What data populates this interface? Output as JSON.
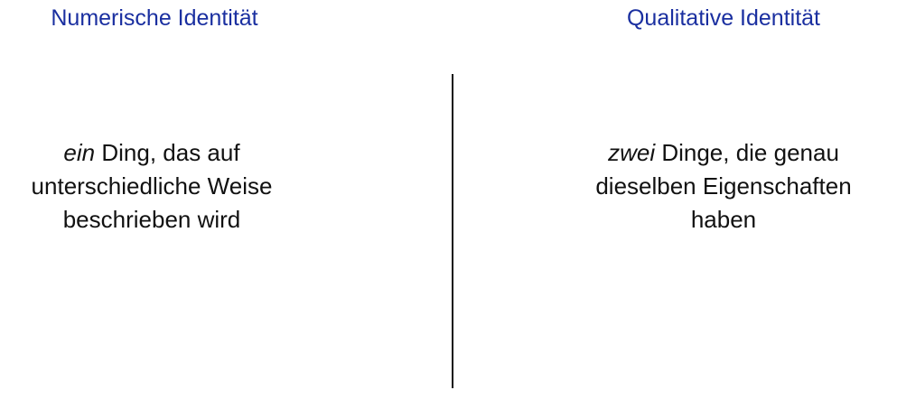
{
  "left": {
    "title": "Numerische Identität",
    "emphasis": "ein",
    "line1_rest": " Ding, das auf",
    "line2": "unterschiedliche Weise",
    "line3": "beschrieben wird"
  },
  "right": {
    "title": "Qualitative Identität",
    "emphasis": "zwei",
    "line1_rest": " Dinge, die genau",
    "line2": "dieselben Eigenschaften",
    "line3": "haben"
  },
  "colors": {
    "heading": "#1a2fa0",
    "text": "#111111",
    "divider": "#111111"
  }
}
